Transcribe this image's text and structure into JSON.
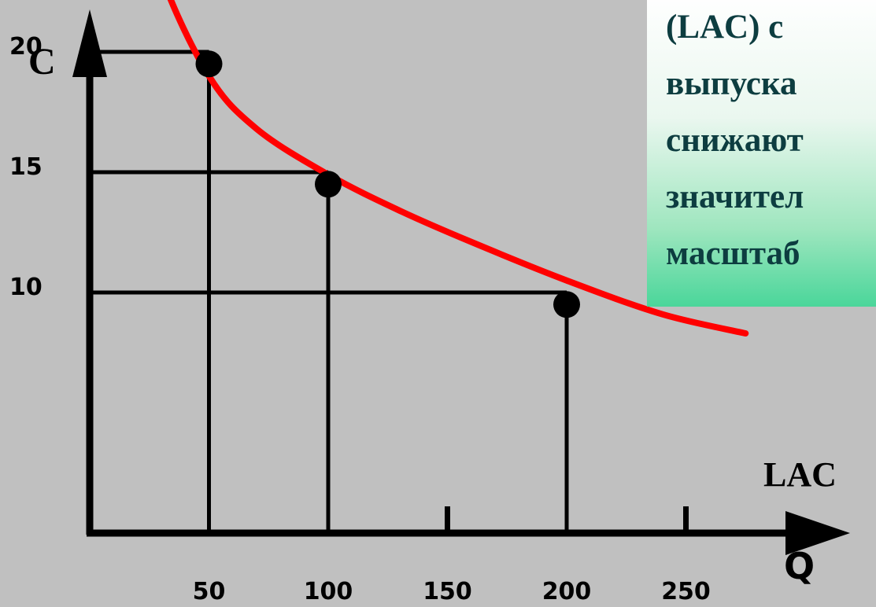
{
  "chart_data": {
    "type": "line",
    "ylabel": "C",
    "xlabel": "Q",
    "x_ticks": [
      50,
      100,
      150,
      200,
      250
    ],
    "y_ticks": [
      10,
      15,
      20
    ],
    "series": [
      {
        "name": "LAC",
        "color": "#ff0000",
        "x": [
          20,
          30,
          50,
          70,
          100,
          130,
          160,
          200,
          240,
          275
        ],
        "y": [
          27.5,
          23.2,
          19.0,
          16.8,
          14.9,
          13.4,
          12.1,
          10.5,
          9.1,
          8.3
        ]
      }
    ],
    "points": [
      {
        "x": 50,
        "y": 19.5
      },
      {
        "x": 100,
        "y": 14.5
      },
      {
        "x": 200,
        "y": 9.5
      }
    ],
    "reference_lines": [
      {
        "x": 50,
        "y": 20
      },
      {
        "x": 100,
        "y": 15
      },
      {
        "x": 200,
        "y": 10
      }
    ]
  },
  "note": {
    "lines": [
      "(LAC) с",
      "выпуска",
      "снижают",
      "значител",
      "масштаб"
    ]
  }
}
